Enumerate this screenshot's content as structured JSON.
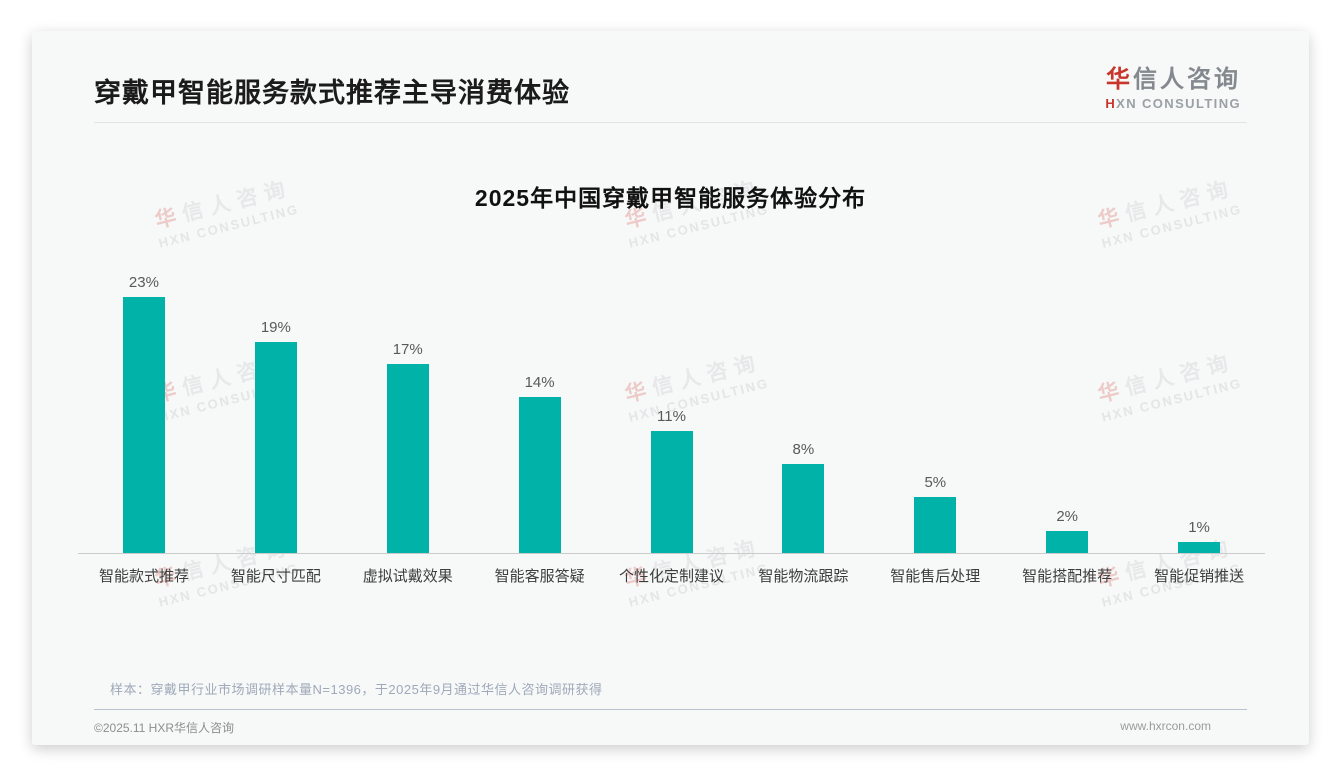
{
  "header": {
    "title": "穿戴甲智能服务款式推荐主导消费体验"
  },
  "logo": {
    "cn": "华信人咨询",
    "en": "HXN CONSULTING"
  },
  "chart_data": {
    "type": "bar",
    "title": "2025年中国穿戴甲智能服务体验分布",
    "categories": [
      "智能款式推荐",
      "智能尺寸匹配",
      "虚拟试戴效果",
      "智能客服答疑",
      "个性化定制建议",
      "智能物流跟踪",
      "智能售后处理",
      "智能搭配推荐",
      "智能促销推送"
    ],
    "values": [
      23,
      19,
      17,
      14,
      11,
      8,
      5,
      2,
      1
    ],
    "value_labels": [
      "23%",
      "19%",
      "17%",
      "14%",
      "11%",
      "8%",
      "5%",
      "2%",
      "1%"
    ],
    "unit": "%",
    "bar_color": "#00b2a8",
    "ylim": [
      0,
      25
    ],
    "grid": false,
    "legend": "none"
  },
  "footnote": "样本：穿戴甲行业市场调研样本量N=1396，于2025年9月通过华信人咨询调研获得",
  "footer": {
    "left": "©2025.11 HXR华信人咨询",
    "right": "www.hxrcon.com"
  },
  "watermark": {
    "cn": "华信人咨询",
    "en": "HXN CONSULTING"
  }
}
